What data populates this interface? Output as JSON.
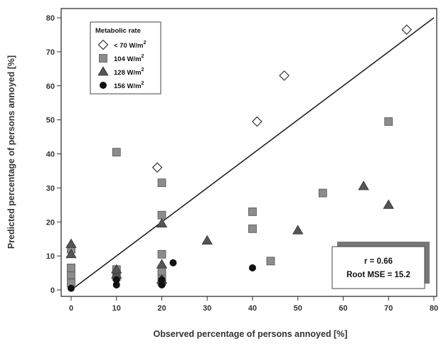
{
  "chart_data": {
    "type": "scatter",
    "xlabel": "Observed percentage of persons annoyed [%]",
    "ylabel": "Predicted percentage of persons annoyed [%]",
    "xlim": [
      0,
      80
    ],
    "ylim": [
      0,
      80
    ],
    "x_ticks": [
      "0",
      "10",
      "20",
      "30",
      "40",
      "50",
      "60",
      "70",
      "80"
    ],
    "y_ticks": [
      "0",
      "10",
      "20",
      "30",
      "40",
      "50",
      "60",
      "70",
      "80"
    ],
    "grid": false,
    "legend": {
      "title": "Metabolic rate",
      "placement": "top-left",
      "entries": [
        {
          "label": "< 70 W/m",
          "sup": "2",
          "marker": "diamond-open"
        },
        {
          "label": "104 W/m",
          "sup": "2",
          "marker": "square"
        },
        {
          "label": "128 W/m",
          "sup": "2",
          "marker": "triangle"
        },
        {
          "label": "156 W/m",
          "sup": "2",
          "marker": "circle"
        }
      ]
    },
    "reference_line": {
      "x": [
        0,
        80
      ],
      "y": [
        0,
        80
      ]
    },
    "stats": {
      "r": "r = 0.66",
      "rmse": "Root MSE = 15.2"
    },
    "series": [
      {
        "marker": "diamond-open",
        "color": "#ffffff",
        "points": [
          [
            19,
            36
          ],
          [
            41,
            49.5
          ],
          [
            47,
            63
          ],
          [
            74,
            76.5
          ]
        ]
      },
      {
        "marker": "square",
        "color": "#8c8c8c",
        "points": [
          [
            0,
            2
          ],
          [
            0,
            4.5
          ],
          [
            0,
            6.5
          ],
          [
            0,
            12
          ],
          [
            10,
            4
          ],
          [
            10,
            6
          ],
          [
            10,
            40.5
          ],
          [
            20,
            2.5
          ],
          [
            20,
            4
          ],
          [
            20,
            5.5
          ],
          [
            20,
            10.5
          ],
          [
            20,
            22
          ],
          [
            20,
            31.5
          ],
          [
            40,
            18
          ],
          [
            40,
            23
          ],
          [
            44,
            8.5
          ],
          [
            55.5,
            28.5
          ],
          [
            70,
            49.5
          ]
        ]
      },
      {
        "marker": "triangle",
        "color": "#555555",
        "points": [
          [
            0,
            10.5
          ],
          [
            0,
            13.5
          ],
          [
            10,
            4.5
          ],
          [
            10,
            6
          ],
          [
            20,
            3
          ],
          [
            20,
            7.5
          ],
          [
            20,
            19.5
          ],
          [
            30,
            14.5
          ],
          [
            50,
            17.5
          ],
          [
            64.5,
            30.5
          ],
          [
            70,
            25
          ]
        ]
      },
      {
        "marker": "circle",
        "color": "#111111",
        "points": [
          [
            0,
            0.5
          ],
          [
            10,
            1.5
          ],
          [
            10,
            3
          ],
          [
            20,
            1.5
          ],
          [
            20,
            3
          ],
          [
            22.5,
            8
          ],
          [
            40,
            6.5
          ]
        ]
      }
    ]
  }
}
